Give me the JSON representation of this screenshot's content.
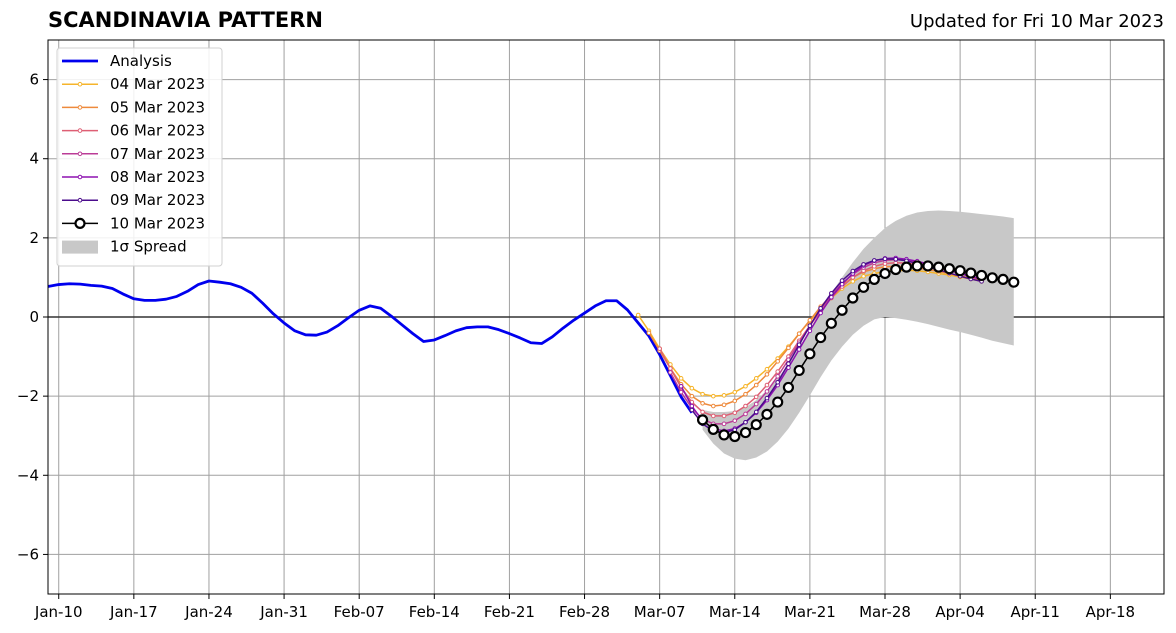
{
  "title": "SCANDINAVIA PATTERN",
  "subtitle": "Updated for Fri 10 Mar 2023",
  "colors": {
    "analysis": "#0000ee",
    "spread": "#c8c8c8",
    "forecast_10mar": "#000000",
    "grid": "#a0a0a0"
  },
  "chart_data": {
    "type": "line",
    "title": "SCANDINAVIA PATTERN",
    "xlabel": "",
    "ylabel": "",
    "x_range": [
      "2023-01-09",
      "2023-04-23"
    ],
    "ylim": [
      -7,
      7
    ],
    "x_ticks": [
      "Jan-10",
      "Jan-17",
      "Jan-24",
      "Jan-31",
      "Feb-07",
      "Feb-14",
      "Feb-21",
      "Feb-28",
      "Mar-07",
      "Mar-14",
      "Mar-21",
      "Mar-28",
      "Apr-04",
      "Apr-11",
      "Apr-18"
    ],
    "x_tick_dates": [
      "2023-01-10",
      "2023-01-17",
      "2023-01-24",
      "2023-01-31",
      "2023-02-07",
      "2023-02-14",
      "2023-02-21",
      "2023-02-28",
      "2023-03-07",
      "2023-03-14",
      "2023-03-21",
      "2023-03-28",
      "2023-04-04",
      "2023-04-11",
      "2023-04-18"
    ],
    "y_ticks": [
      "6",
      "4",
      "2",
      "0",
      "−2",
      "−4",
      "−6"
    ],
    "y_tick_values": [
      6,
      4,
      2,
      0,
      -2,
      -4,
      -6
    ],
    "grid": true,
    "legend_position": "top-left",
    "legend": [
      "Analysis",
      "04 Mar 2023",
      "05 Mar 2023",
      "06 Mar 2023",
      "07 Mar 2023",
      "08 Mar 2023",
      "09 Mar 2023",
      "10 Mar 2023",
      "1σ Spread"
    ],
    "series": [
      {
        "name": "Analysis",
        "color": "#0000ee",
        "start": "2023-01-09",
        "values": [
          0.77,
          0.82,
          0.84,
          0.83,
          0.8,
          0.78,
          0.72,
          0.58,
          0.46,
          0.42,
          0.42,
          0.45,
          0.52,
          0.65,
          0.82,
          0.91,
          0.88,
          0.84,
          0.75,
          0.6,
          0.35,
          0.08,
          -0.15,
          -0.35,
          -0.45,
          -0.46,
          -0.38,
          -0.22,
          -0.02,
          0.17,
          0.28,
          0.22,
          0.02,
          -0.2,
          -0.42,
          -0.62,
          -0.58,
          -0.47,
          -0.35,
          -0.27,
          -0.25,
          -0.25,
          -0.32,
          -0.42,
          -0.53,
          -0.65,
          -0.67,
          -0.5,
          -0.28,
          -0.08,
          0.1,
          0.28,
          0.41,
          0.41,
          0.18,
          -0.15,
          -0.48,
          -0.95,
          -1.48,
          -2.02,
          -2.42
        ]
      },
      {
        "name": "04 Mar 2023",
        "color": "#f6b42b",
        "start": "2023-03-05",
        "values": [
          0.05,
          -0.35,
          -0.8,
          -1.2,
          -1.55,
          -1.8,
          -1.95,
          -2.0,
          -1.98,
          -1.9,
          -1.75,
          -1.55,
          -1.32,
          -1.05,
          -0.75,
          -0.42,
          -0.1,
          0.2,
          0.48,
          0.72,
          0.9,
          1.03,
          1.1,
          1.15,
          1.17,
          1.18,
          1.17,
          1.14,
          1.1,
          1.06,
          1.01,
          0.96,
          0.9
        ]
      },
      {
        "name": "05 Mar 2023",
        "color": "#ee8a3c",
        "start": "2023-03-06",
        "values": [
          -0.4,
          -0.85,
          -1.3,
          -1.7,
          -2.0,
          -2.18,
          -2.25,
          -2.22,
          -2.12,
          -1.95,
          -1.72,
          -1.45,
          -1.12,
          -0.78,
          -0.42,
          -0.08,
          0.26,
          0.55,
          0.8,
          1.0,
          1.14,
          1.22,
          1.27,
          1.28,
          1.27,
          1.24,
          1.2,
          1.15,
          1.1,
          1.04,
          0.98,
          0.92
        ]
      },
      {
        "name": "06 Mar 2023",
        "color": "#de5f74",
        "start": "2023-03-07",
        "values": [
          -0.8,
          -1.3,
          -1.78,
          -2.15,
          -2.4,
          -2.5,
          -2.5,
          -2.42,
          -2.25,
          -2.02,
          -1.72,
          -1.38,
          -1.0,
          -0.6,
          -0.22,
          0.15,
          0.48,
          0.77,
          1.0,
          1.17,
          1.28,
          1.35,
          1.37,
          1.36,
          1.33,
          1.29,
          1.23,
          1.17,
          1.1,
          1.03,
          0.96
        ]
      },
      {
        "name": "07 Mar 2023",
        "color": "#bb3c97",
        "start": "2023-03-08",
        "values": [
          -1.4,
          -1.9,
          -2.3,
          -2.58,
          -2.7,
          -2.7,
          -2.62,
          -2.45,
          -2.2,
          -1.88,
          -1.5,
          -1.08,
          -0.65,
          -0.22,
          0.2,
          0.55,
          0.85,
          1.08,
          1.25,
          1.37,
          1.43,
          1.45,
          1.43,
          1.39,
          1.33,
          1.26,
          1.19,
          1.11,
          1.03,
          0.96
        ]
      },
      {
        "name": "08 Mar 2023",
        "color": "#8d12b0",
        "start": "2023-03-09",
        "values": [
          -1.75,
          -2.25,
          -2.62,
          -2.82,
          -2.88,
          -2.82,
          -2.66,
          -2.42,
          -2.1,
          -1.72,
          -1.28,
          -0.82,
          -0.35,
          0.1,
          0.5,
          0.83,
          1.1,
          1.3,
          1.42,
          1.48,
          1.49,
          1.46,
          1.41,
          1.34,
          1.26,
          1.18,
          1.1,
          1.02,
          0.95
        ]
      },
      {
        "name": "09 Mar 2023",
        "color": "#4b0c8c",
        "start": "2023-03-10",
        "values": [
          -2.35,
          -2.7,
          -2.88,
          -2.92,
          -2.85,
          -2.66,
          -2.4,
          -2.05,
          -1.65,
          -1.18,
          -0.7,
          -0.22,
          0.22,
          0.6,
          0.92,
          1.16,
          1.33,
          1.43,
          1.47,
          1.46,
          1.42,
          1.35,
          1.27,
          1.19,
          1.11,
          1.03,
          0.96,
          0.9
        ]
      },
      {
        "name": "10 Mar 2023",
        "color": "#000000",
        "start": "2023-03-11",
        "values": [
          -2.6,
          -2.84,
          -2.98,
          -3.02,
          -2.92,
          -2.72,
          -2.46,
          -2.15,
          -1.78,
          -1.35,
          -0.93,
          -0.52,
          -0.16,
          0.17,
          0.48,
          0.75,
          0.95,
          1.1,
          1.2,
          1.26,
          1.29,
          1.29,
          1.26,
          1.22,
          1.17,
          1.11,
          1.05,
          0.99,
          0.95,
          0.88
        ]
      }
    ],
    "spread": {
      "name": "1σ Spread",
      "color": "#c8c8c8",
      "start": "2023-03-11",
      "upper": [
        -2.35,
        -2.4,
        -2.4,
        -2.38,
        -2.28,
        -2.1,
        -1.85,
        -1.55,
        -1.18,
        -0.76,
        -0.3,
        0.15,
        0.6,
        1.0,
        1.38,
        1.72,
        2.0,
        2.25,
        2.43,
        2.56,
        2.64,
        2.68,
        2.69,
        2.68,
        2.66,
        2.63,
        2.6,
        2.57,
        2.54,
        2.5
      ],
      "lower": [
        -2.85,
        -3.2,
        -3.45,
        -3.58,
        -3.62,
        -3.55,
        -3.4,
        -3.15,
        -2.82,
        -2.42,
        -1.98,
        -1.52,
        -1.1,
        -0.75,
        -0.45,
        -0.22,
        -0.06,
        0.0,
        -0.03,
        -0.07,
        -0.12,
        -0.18,
        -0.25,
        -0.32,
        -0.38,
        -0.45,
        -0.52,
        -0.6,
        -0.66,
        -0.72
      ]
    }
  }
}
